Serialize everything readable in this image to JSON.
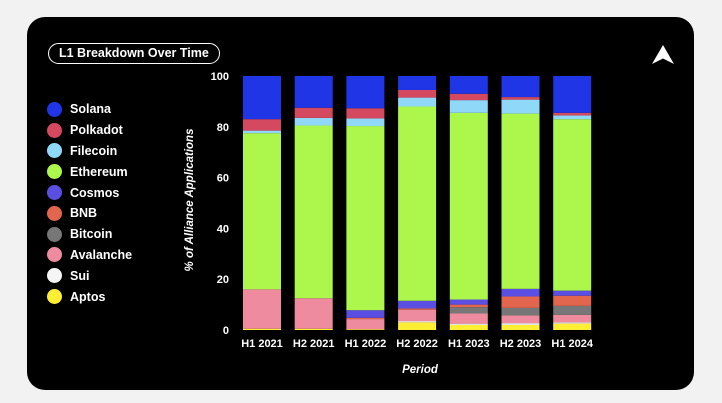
{
  "title": "L1 Breakdown Over Time",
  "chart_data": {
    "type": "bar",
    "stacked": true,
    "title": "L1 Breakdown Over Time",
    "xlabel": "Period",
    "ylabel": "% of Alliance Applications",
    "ylim": [
      0,
      100
    ],
    "yticks": [
      0,
      20,
      40,
      60,
      80,
      100
    ],
    "categories": [
      "H1 2021",
      "H2 2021",
      "H1 2022",
      "H2 2022",
      "H1 2023",
      "H2 2023",
      "H1 2024"
    ],
    "series": [
      {
        "name": "Aptos",
        "color": "#ffee33",
        "values": [
          0.5,
          0.5,
          0.3,
          3.0,
          2.0,
          2.0,
          2.5
        ]
      },
      {
        "name": "Sui",
        "color": "#f5f5f5",
        "values": [
          0,
          0,
          0,
          0.5,
          0.5,
          0.7,
          0.5
        ]
      },
      {
        "name": "Avalanche",
        "color": "#ee8b9e",
        "values": [
          15.5,
          12.0,
          4.0,
          4.5,
          4.0,
          3.0,
          3.0
        ]
      },
      {
        "name": "Bitcoin",
        "color": "#777777",
        "values": [
          0,
          0,
          0,
          0,
          2.5,
          3.0,
          3.5
        ]
      },
      {
        "name": "BNB",
        "color": "#e2664e",
        "values": [
          0,
          0,
          0.5,
          0.5,
          1.0,
          4.5,
          4.0
        ]
      },
      {
        "name": "Cosmos",
        "color": "#5b4ee3",
        "values": [
          0,
          0,
          3.0,
          3.0,
          2.0,
          3.0,
          2.0
        ]
      },
      {
        "name": "Ethereum",
        "color": "#adf64c",
        "values": [
          61.5,
          68.0,
          72.5,
          76.5,
          73.5,
          69.0,
          67.5
        ]
      },
      {
        "name": "Filecoin",
        "color": "#8fd8f8",
        "values": [
          1.0,
          3.0,
          3.0,
          3.5,
          5.0,
          5.5,
          1.5
        ]
      },
      {
        "name": "Polkadot",
        "color": "#d44860",
        "values": [
          4.5,
          4.0,
          4.0,
          3.0,
          2.5,
          1.0,
          1.0
        ]
      },
      {
        "name": "Solana",
        "color": "#1f35e6",
        "values": [
          17.0,
          12.5,
          12.7,
          5.5,
          7.0,
          8.3,
          14.5
        ]
      }
    ],
    "legend": {
      "position": "left",
      "order": [
        "Solana",
        "Polkadot",
        "Filecoin",
        "Ethereum",
        "Cosmos",
        "BNB",
        "Bitcoin",
        "Avalanche",
        "Sui",
        "Aptos"
      ]
    },
    "grid": false
  }
}
